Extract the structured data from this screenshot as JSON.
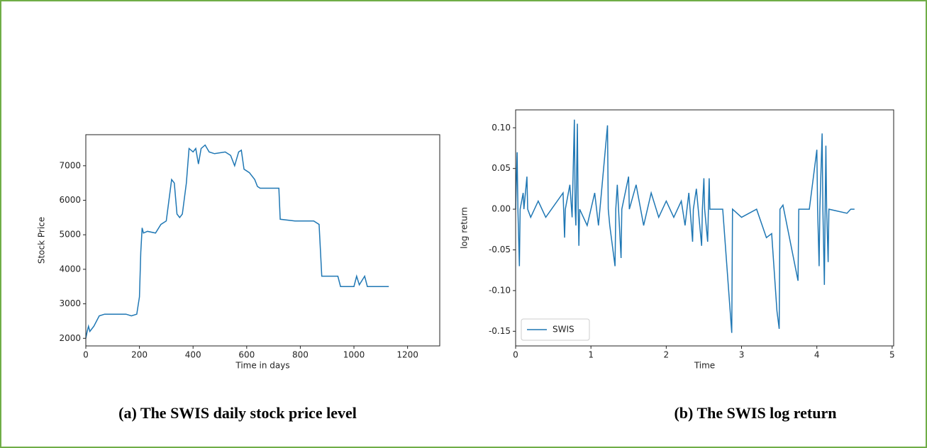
{
  "chart_data": [
    {
      "type": "line",
      "caption": "(a) The SWIS daily stock price level",
      "xlabel": "Time in days",
      "ylabel": "Stock Price",
      "color": "#1f77b4",
      "x": [
        0,
        5,
        10,
        15,
        30,
        50,
        70,
        100,
        150,
        170,
        190,
        200,
        205,
        210,
        215,
        230,
        260,
        280,
        300,
        310,
        320,
        330,
        340,
        350,
        360,
        375,
        385,
        400,
        410,
        420,
        430,
        445,
        460,
        480,
        520,
        540,
        555,
        570,
        580,
        590,
        610,
        630,
        640,
        650,
        700,
        720,
        725,
        780,
        850,
        870,
        880,
        940,
        950,
        1000,
        1010,
        1020,
        1040,
        1050,
        1100,
        1130
      ],
      "values": [
        2000,
        2200,
        2350,
        2200,
        2350,
        2650,
        2700,
        2700,
        2700,
        2650,
        2700,
        3200,
        4500,
        5200,
        5050,
        5100,
        5050,
        5300,
        5400,
        6000,
        6600,
        6500,
        5600,
        5500,
        5600,
        6500,
        7500,
        7400,
        7500,
        7050,
        7500,
        7600,
        7400,
        7350,
        7400,
        7300,
        7000,
        7400,
        7450,
        6900,
        6800,
        6600,
        6400,
        6350,
        6350,
        6350,
        5450,
        5400,
        5400,
        5300,
        3800,
        3800,
        3500,
        3500,
        3800,
        3550,
        3800,
        3500,
        3500,
        3500
      ],
      "xlim": [
        0,
        1320
      ],
      "ylim": [
        1780,
        7900
      ],
      "xticks": [
        0,
        200,
        400,
        600,
        800,
        1000,
        1200
      ],
      "yticks": [
        2000,
        3000,
        4000,
        5000,
        6000,
        7000
      ]
    },
    {
      "type": "line",
      "caption": "(b) The SWIS log return",
      "xlabel": "Time",
      "ylabel": "log return",
      "legend": "lower left",
      "x": [
        0,
        0.02,
        0.03,
        0.05,
        0.06,
        0.1,
        0.11,
        0.15,
        0.16,
        0.2,
        0.3,
        0.4,
        0.63,
        0.65,
        0.66,
        0.72,
        0.75,
        0.78,
        0.79,
        0.8,
        0.82,
        0.83,
        0.84,
        0.85,
        0.95,
        1.05,
        1.1,
        1.22,
        1.23,
        1.25,
        1.32,
        1.33,
        1.35,
        1.4,
        1.41,
        1.5,
        1.51,
        1.6,
        1.7,
        1.8,
        1.9,
        2.0,
        2.1,
        2.2,
        2.25,
        2.3,
        2.35,
        2.36,
        2.4,
        2.47,
        2.48,
        2.5,
        2.51,
        2.55,
        2.56,
        2.57,
        2.58,
        2.75,
        2.87,
        2.88,
        3.0,
        3.2,
        3.33,
        3.4,
        3.47,
        3.5,
        3.51,
        3.55,
        3.75,
        3.76,
        3.9,
        4.0,
        4.01,
        4.03,
        4.04,
        4.07,
        4.08,
        4.1,
        4.11,
        4.12,
        4.13,
        4.15,
        4.16,
        4.4,
        4.45,
        4.5
      ],
      "series": [
        {
          "name": "SWIS",
          "color": "#1f77b4",
          "values": [
            0,
            0.07,
            0,
            -0.07,
            0,
            0.02,
            0,
            0.04,
            0,
            -0.01,
            0.01,
            -0.01,
            0.02,
            -0.035,
            0,
            0.03,
            -0.01,
            0.11,
            0,
            -0.02,
            0.105,
            0,
            -0.045,
            0,
            -0.02,
            0.02,
            -0.02,
            0.103,
            0,
            -0.02,
            -0.07,
            0,
            0.03,
            -0.06,
            0,
            0.04,
            0,
            0.03,
            -0.02,
            0.02,
            -0.01,
            0.01,
            -0.01,
            0.01,
            -0.02,
            0.02,
            -0.04,
            0,
            0.025,
            -0.045,
            0,
            0.038,
            0,
            -0.04,
            0,
            0.038,
            0,
            0,
            -0.152,
            0,
            -0.01,
            0,
            -0.035,
            -0.03,
            -0.125,
            -0.147,
            0,
            0.005,
            -0.088,
            0,
            0,
            0.073,
            0,
            -0.07,
            0,
            0.093,
            0,
            -0.093,
            0,
            0.078,
            0,
            -0.065,
            0,
            -0.005,
            0,
            0
          ]
        }
      ],
      "xlim": [
        0,
        5.02
      ],
      "ylim": [
        -0.168,
        0.122
      ],
      "xticks": [
        0,
        1,
        2,
        3,
        4,
        5
      ],
      "yticks": [
        {
          "value": -0.15,
          "label": "-0.15"
        },
        {
          "value": -0.1,
          "label": "-0.10"
        },
        {
          "value": -0.05,
          "label": "-0.05"
        },
        {
          "value": 0,
          "label": "0.00"
        },
        {
          "value": 0.05,
          "label": "0.05"
        },
        {
          "value": 0.1,
          "label": "0.10"
        }
      ]
    }
  ]
}
